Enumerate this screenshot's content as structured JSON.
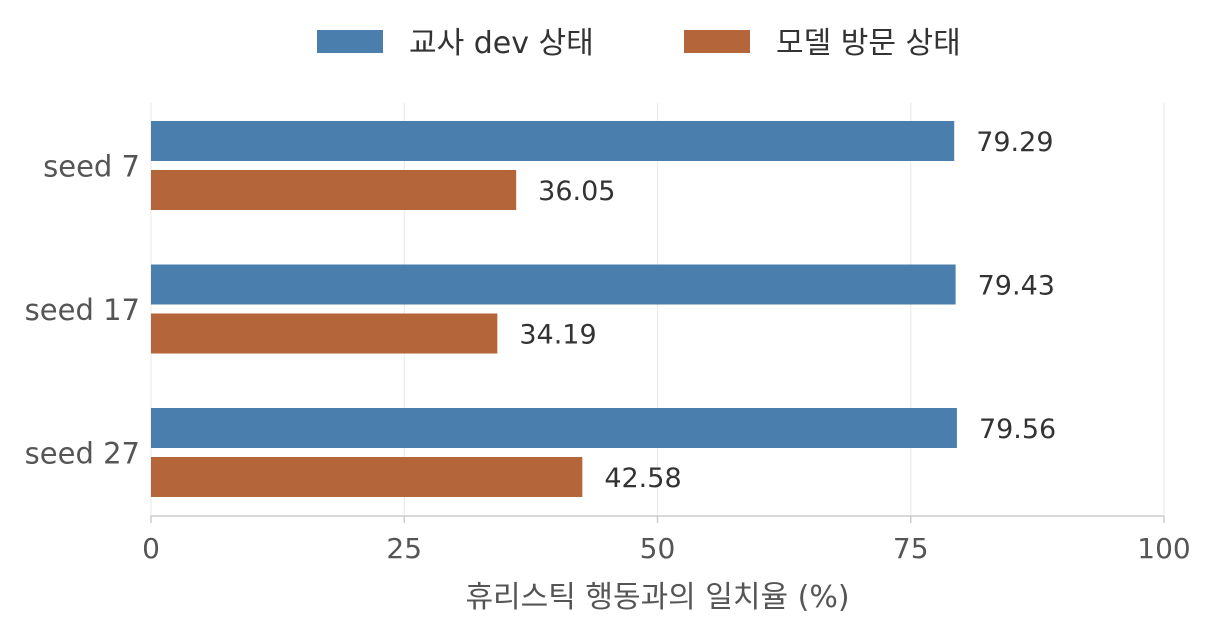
{
  "chart_data": {
    "type": "bar",
    "orientation": "horizontal",
    "categories": [
      "seed 7",
      "seed 17",
      "seed 27"
    ],
    "series": [
      {
        "name": "교사 dev 상태",
        "color": "#4a7fad",
        "values": [
          79.29,
          79.43,
          79.56
        ],
        "labels": [
          "79.29",
          "79.43",
          "79.56"
        ]
      },
      {
        "name": "모델 방문 상태",
        "color": "#b4653a",
        "values": [
          36.05,
          34.19,
          42.58
        ],
        "labels": [
          "36.05",
          "34.19",
          "42.58"
        ]
      }
    ],
    "xlabel": "휴리스틱 행동과의 일치율 (%)",
    "ylabel": "",
    "xlim": [
      0,
      100
    ],
    "xticks": [
      "0",
      "25",
      "50",
      "75",
      "100"
    ],
    "grid": "vertical",
    "legend_position": "top-center"
  }
}
